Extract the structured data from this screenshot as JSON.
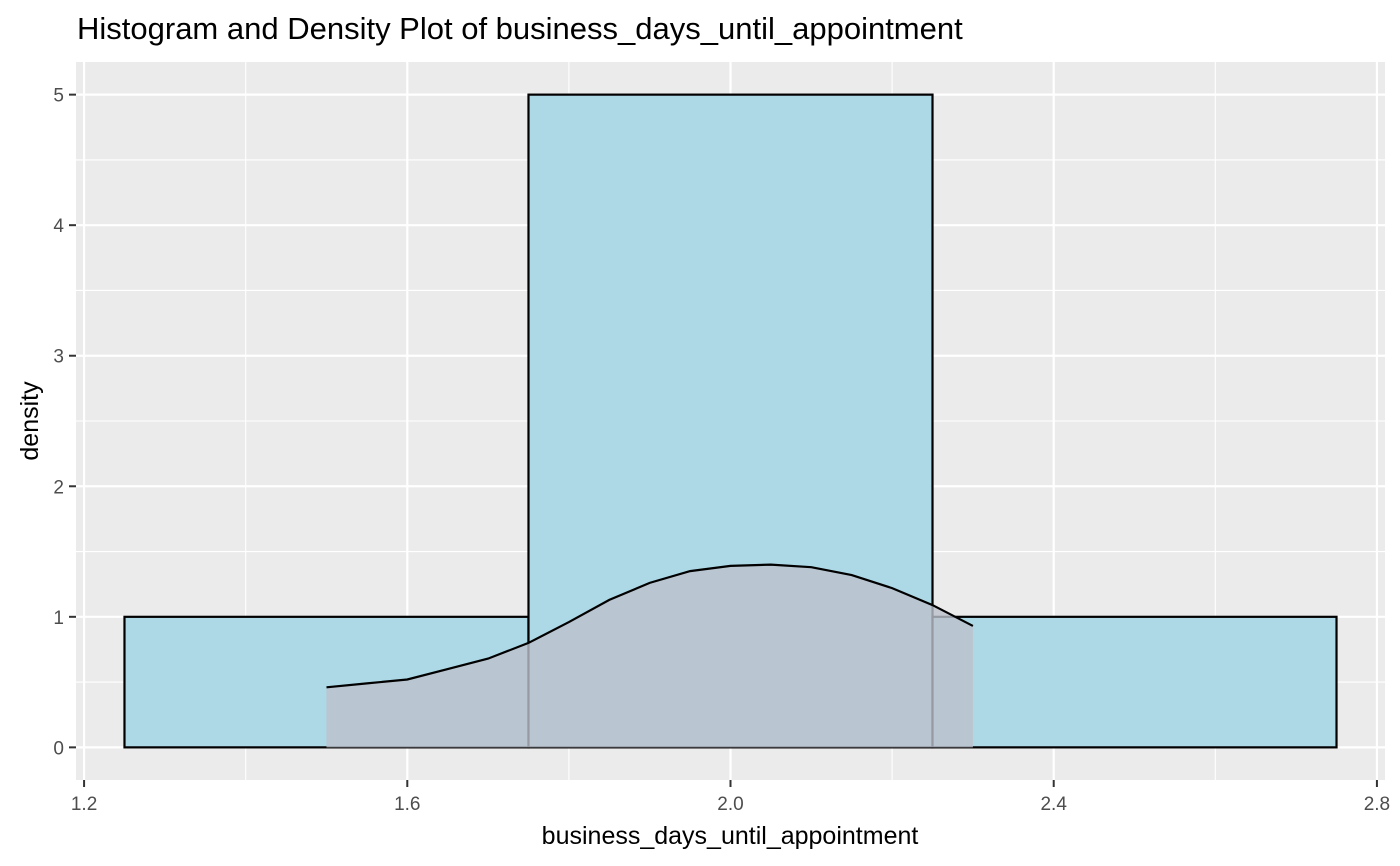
{
  "chart_data": {
    "type": "histogram",
    "title": "Histogram and Density Plot of business_days_until_appointment",
    "xlabel": "business_days_until_appointment",
    "ylabel": "density",
    "xlim": [
      1.19,
      2.81
    ],
    "ylim": [
      -0.25,
      5.25
    ],
    "x_ticks": [
      "1.2",
      "1.6",
      "2.0",
      "2.4",
      "2.8"
    ],
    "x_tick_values": [
      1.2,
      1.6,
      2.0,
      2.4,
      2.8
    ],
    "y_ticks": [
      "0",
      "1",
      "2",
      "3",
      "4",
      "5"
    ],
    "y_tick_values": [
      0,
      1,
      2,
      3,
      4,
      5
    ],
    "grid": true,
    "bins": [
      {
        "x0": 1.25,
        "x1": 1.75,
        "density": 1
      },
      {
        "x0": 1.75,
        "x1": 2.25,
        "density": 5
      },
      {
        "x0": 2.25,
        "x1": 2.75,
        "density": 1
      }
    ],
    "density_curve": {
      "x": [
        1.5,
        1.55,
        1.6,
        1.65,
        1.7,
        1.75,
        1.8,
        1.85,
        1.9,
        1.95,
        2.0,
        2.05,
        2.1,
        2.15,
        2.2,
        2.25,
        2.3
      ],
      "y": [
        0.46,
        0.49,
        0.52,
        0.6,
        0.68,
        0.8,
        0.96,
        1.13,
        1.26,
        1.35,
        1.39,
        1.4,
        1.38,
        1.32,
        1.22,
        1.09,
        0.93
      ]
    },
    "colors": {
      "panel_background": "#ebebeb",
      "grid": "#ffffff",
      "bar_fill": "#add8e6",
      "bar_outline": "#000000",
      "density_fill": "#bcc0ca",
      "density_line": "#000000",
      "tick_text": "#4d4d4d"
    }
  }
}
